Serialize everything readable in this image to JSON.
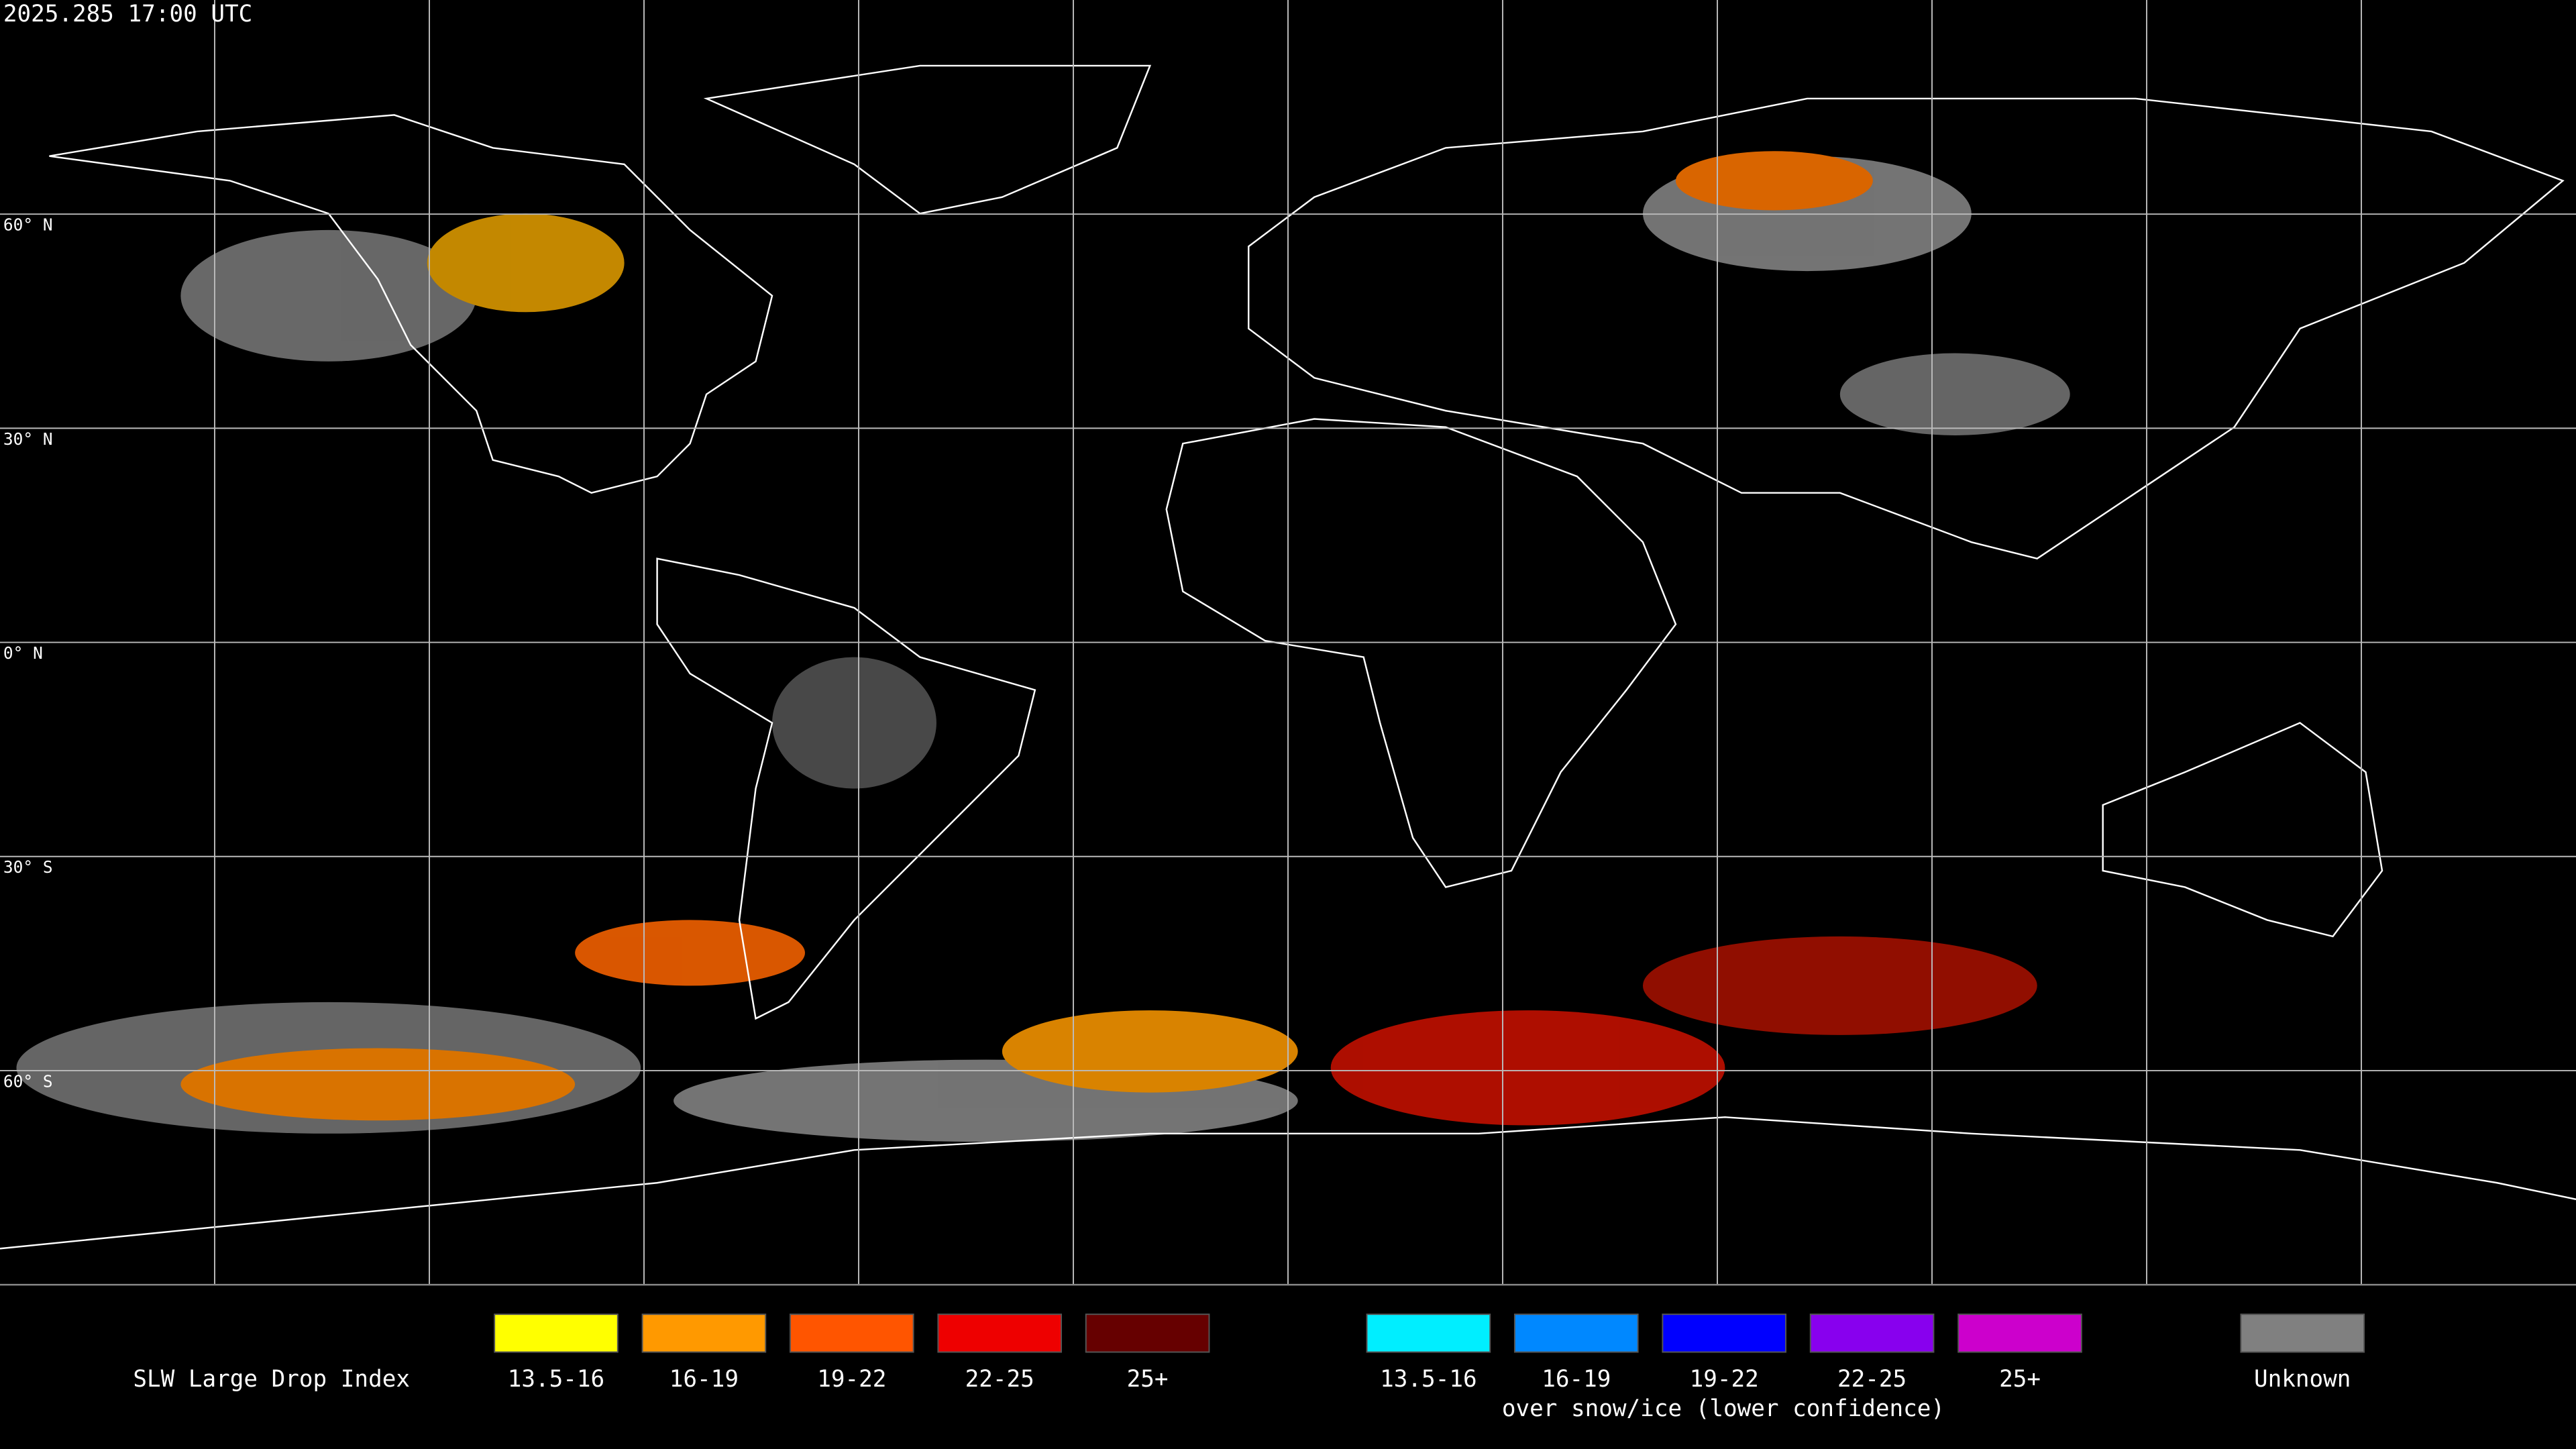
{
  "header": {
    "timestamp": "2025.285 17:00 UTC"
  },
  "map": {
    "lat_labels": [
      "60° N",
      "30° N",
      "0° N",
      "30° S",
      "60° S"
    ]
  },
  "legend": {
    "title": "SLW Large Drop Index",
    "groups": [
      {
        "items": [
          {
            "label": "13.5-16",
            "color": "#ffff00"
          },
          {
            "label": "16-19",
            "color": "#ff9900"
          },
          {
            "label": "19-22",
            "color": "#ff5500"
          },
          {
            "label": "22-25",
            "color": "#ee0000"
          },
          {
            "label": "25+",
            "color": "#660000"
          }
        ]
      },
      {
        "items": [
          {
            "label": "13.5-16",
            "color": "#00eeff"
          },
          {
            "label": "16-19",
            "color": "#0088ff"
          },
          {
            "label": "19-22",
            "color": "#0000ff"
          },
          {
            "label": "22-25",
            "color": "#8800ee"
          },
          {
            "label": "25+",
            "color": "#cc00cc"
          }
        ],
        "note": "over snow/ice (lower confidence)"
      },
      {
        "items": [
          {
            "label": "Unknown",
            "color": "#808080"
          }
        ]
      }
    ]
  }
}
